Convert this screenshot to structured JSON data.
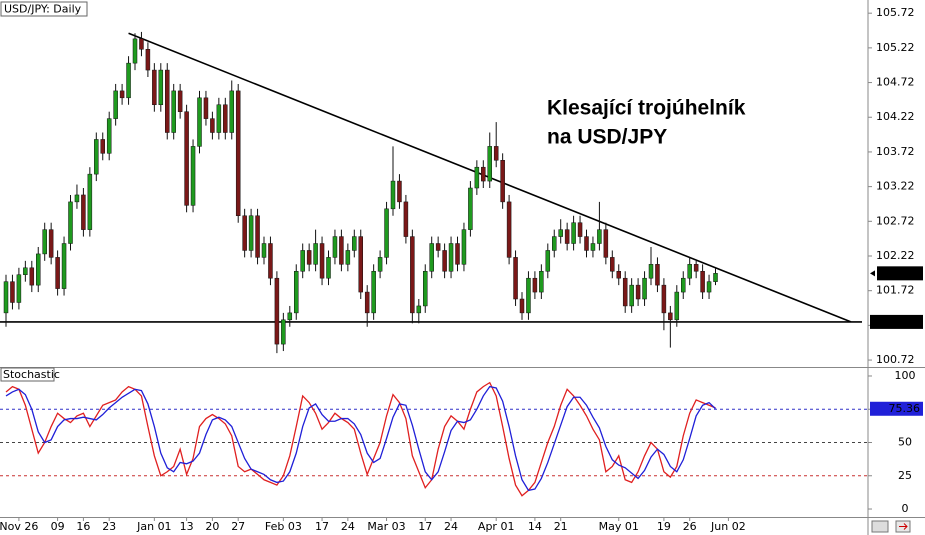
{
  "chart_data": [
    {
      "type": "candlestick",
      "title": "USD/JPY: Daily",
      "annotation": [
        "Klesající trojúhelník",
        "na USD/JPY"
      ],
      "ylim": [
        100.62,
        105.91
      ],
      "yticks": [
        100.72,
        101.22,
        101.72,
        102.22,
        102.72,
        103.22,
        103.72,
        104.22,
        104.72,
        105.22,
        105.72
      ],
      "up_color": "#1f9a1f",
      "down_color": "#7a1818",
      "last_price": 101.97,
      "support": 101.27,
      "trendline": {
        "x": [
          19,
          131
        ],
        "y": [
          105.43,
          101.27
        ]
      },
      "ohlc": [
        [
          101.4,
          101.95,
          101.2,
          101.85
        ],
        [
          101.85,
          101.95,
          101.45,
          101.55
        ],
        [
          101.55,
          102.05,
          101.45,
          101.95
        ],
        [
          101.95,
          102.15,
          101.85,
          102.05
        ],
        [
          102.05,
          102.15,
          101.7,
          101.8
        ],
        [
          101.8,
          102.35,
          101.7,
          102.25
        ],
        [
          102.25,
          102.7,
          102.15,
          102.6
        ],
        [
          102.6,
          102.7,
          102.1,
          102.2
        ],
        [
          102.2,
          102.3,
          101.65,
          101.75
        ],
        [
          101.75,
          102.5,
          101.65,
          102.4
        ],
        [
          102.4,
          103.1,
          102.3,
          103.0
        ],
        [
          103.0,
          103.25,
          102.9,
          103.1
        ],
        [
          103.1,
          103.2,
          102.5,
          102.6
        ],
        [
          102.6,
          103.5,
          102.5,
          103.4
        ],
        [
          103.4,
          104.0,
          103.3,
          103.9
        ],
        [
          103.9,
          104.0,
          103.6,
          103.7
        ],
        [
          103.7,
          104.3,
          103.6,
          104.2
        ],
        [
          104.2,
          104.7,
          104.1,
          104.6
        ],
        [
          104.6,
          104.7,
          104.4,
          104.5
        ],
        [
          104.5,
          105.1,
          104.4,
          105.0
        ],
        [
          105.0,
          105.43,
          104.9,
          105.35
        ],
        [
          105.35,
          105.45,
          105.1,
          105.2
        ],
        [
          105.2,
          105.3,
          104.8,
          104.9
        ],
        [
          104.9,
          105.0,
          104.3,
          104.4
        ],
        [
          104.4,
          105.0,
          104.3,
          104.9
        ],
        [
          104.9,
          105.0,
          103.9,
          104.0
        ],
        [
          104.0,
          104.7,
          103.9,
          104.6
        ],
        [
          104.6,
          104.7,
          104.2,
          104.3
        ],
        [
          104.3,
          104.4,
          102.85,
          102.95
        ],
        [
          102.95,
          103.9,
          102.85,
          103.8
        ],
        [
          103.8,
          104.6,
          103.7,
          104.5
        ],
        [
          104.5,
          104.6,
          104.1,
          104.2
        ],
        [
          104.2,
          104.3,
          103.9,
          104.0
        ],
        [
          104.0,
          104.5,
          103.9,
          104.4
        ],
        [
          104.4,
          104.5,
          103.9,
          104.0
        ],
        [
          104.0,
          104.75,
          103.9,
          104.6
        ],
        [
          104.6,
          104.7,
          102.7,
          102.8
        ],
        [
          102.8,
          102.9,
          102.2,
          102.3
        ],
        [
          102.3,
          102.9,
          102.2,
          102.8
        ],
        [
          102.8,
          102.9,
          102.1,
          102.2
        ],
        [
          102.2,
          102.5,
          102.1,
          102.4
        ],
        [
          102.4,
          102.5,
          101.8,
          101.9
        ],
        [
          101.9,
          102.0,
          100.82,
          100.95
        ],
        [
          100.95,
          101.4,
          100.85,
          101.3
        ],
        [
          101.3,
          101.5,
          101.2,
          101.4
        ],
        [
          101.4,
          102.1,
          101.3,
          102.0
        ],
        [
          102.0,
          102.4,
          101.9,
          102.3
        ],
        [
          102.3,
          102.4,
          102.0,
          102.1
        ],
        [
          102.1,
          102.6,
          102.0,
          102.4
        ],
        [
          102.4,
          102.5,
          101.8,
          101.9
        ],
        [
          101.9,
          102.3,
          101.8,
          102.2
        ],
        [
          102.2,
          102.6,
          102.1,
          102.5
        ],
        [
          102.5,
          102.6,
          102.0,
          102.1
        ],
        [
          102.1,
          102.4,
          102.0,
          102.3
        ],
        [
          102.3,
          102.6,
          102.2,
          102.5
        ],
        [
          102.5,
          102.6,
          101.6,
          101.7
        ],
        [
          101.7,
          101.8,
          101.2,
          101.4
        ],
        [
          101.4,
          102.1,
          101.3,
          102.0
        ],
        [
          102.0,
          102.3,
          101.9,
          102.2
        ],
        [
          102.2,
          103.0,
          102.1,
          102.9
        ],
        [
          102.9,
          103.8,
          102.8,
          103.3
        ],
        [
          103.3,
          103.4,
          102.9,
          103.0
        ],
        [
          103.0,
          103.1,
          102.4,
          102.5
        ],
        [
          102.5,
          102.6,
          101.25,
          101.4
        ],
        [
          101.4,
          101.6,
          101.25,
          101.5
        ],
        [
          101.5,
          102.1,
          101.4,
          102.0
        ],
        [
          102.0,
          102.5,
          101.9,
          102.4
        ],
        [
          102.4,
          102.5,
          102.2,
          102.3
        ],
        [
          102.3,
          102.4,
          101.9,
          102.0
        ],
        [
          102.0,
          102.5,
          101.9,
          102.4
        ],
        [
          102.4,
          102.5,
          102.0,
          102.1
        ],
        [
          102.1,
          102.7,
          102.0,
          102.6
        ],
        [
          102.6,
          103.3,
          102.5,
          103.2
        ],
        [
          103.2,
          103.6,
          103.1,
          103.5
        ],
        [
          103.5,
          103.6,
          103.2,
          103.3
        ],
        [
          103.3,
          104.0,
          103.2,
          103.8
        ],
        [
          103.8,
          104.15,
          103.5,
          103.6
        ],
        [
          103.6,
          103.7,
          102.9,
          103.0
        ],
        [
          103.0,
          103.1,
          102.1,
          102.2
        ],
        [
          102.2,
          102.3,
          101.5,
          101.6
        ],
        [
          101.6,
          101.7,
          101.3,
          101.4
        ],
        [
          101.4,
          102.0,
          101.3,
          101.9
        ],
        [
          101.9,
          102.0,
          101.6,
          101.7
        ],
        [
          101.7,
          102.1,
          101.6,
          102.0
        ],
        [
          102.0,
          102.4,
          101.9,
          102.3
        ],
        [
          102.3,
          102.6,
          102.2,
          102.5
        ],
        [
          102.5,
          102.75,
          102.4,
          102.6
        ],
        [
          102.6,
          102.7,
          102.3,
          102.4
        ],
        [
          102.4,
          102.8,
          102.3,
          102.7
        ],
        [
          102.7,
          102.8,
          102.4,
          102.5
        ],
        [
          102.5,
          102.6,
          102.2,
          102.3
        ],
        [
          102.3,
          102.5,
          102.2,
          102.4
        ],
        [
          102.4,
          103.0,
          102.3,
          102.6
        ],
        [
          102.6,
          102.7,
          102.1,
          102.2
        ],
        [
          102.2,
          102.3,
          101.9,
          102.0
        ],
        [
          102.0,
          102.1,
          101.8,
          101.9
        ],
        [
          101.9,
          102.0,
          101.4,
          101.5
        ],
        [
          101.5,
          101.9,
          101.4,
          101.8
        ],
        [
          101.8,
          101.9,
          101.5,
          101.6
        ],
        [
          101.6,
          102.0,
          101.5,
          101.9
        ],
        [
          101.9,
          102.35,
          101.8,
          102.1
        ],
        [
          102.1,
          102.2,
          101.7,
          101.8
        ],
        [
          101.8,
          101.9,
          101.15,
          101.4
        ],
        [
          101.4,
          101.5,
          100.9,
          101.3
        ],
        [
          101.3,
          101.8,
          101.2,
          101.7
        ],
        [
          101.7,
          102.0,
          101.6,
          101.9
        ],
        [
          101.9,
          102.2,
          101.8,
          102.1
        ],
        [
          102.1,
          102.15,
          101.9,
          102.0
        ],
        [
          102.0,
          102.1,
          101.6,
          101.7
        ],
        [
          101.7,
          101.95,
          101.6,
          101.85
        ],
        [
          101.85,
          102.05,
          101.8,
          101.97
        ]
      ]
    },
    {
      "type": "line",
      "title": "Stochastic",
      "ylim": [
        -6,
        106
      ],
      "yticks": [
        0,
        25,
        50,
        75,
        100
      ],
      "level_lines": [
        75,
        50,
        25
      ],
      "level_colors": [
        "#3030c8",
        "#444444",
        "#c83030"
      ],
      "xticks": [
        {
          "value": 2,
          "label": "Nov 26"
        },
        {
          "value": 8,
          "label": "09"
        },
        {
          "value": 12,
          "label": "16"
        },
        {
          "value": 16,
          "label": "23"
        },
        {
          "value": 23,
          "label": "Jan 01"
        },
        {
          "value": 28,
          "label": "13"
        },
        {
          "value": 32,
          "label": "20"
        },
        {
          "value": 36,
          "label": "27"
        },
        {
          "value": 43,
          "label": "Feb 03"
        },
        {
          "value": 49,
          "label": "17"
        },
        {
          "value": 53,
          "label": "24"
        },
        {
          "value": 59,
          "label": "Mar 03"
        },
        {
          "value": 65,
          "label": "17"
        },
        {
          "value": 69,
          "label": "24"
        },
        {
          "value": 76,
          "label": "Apr 01"
        },
        {
          "value": 82,
          "label": "14"
        },
        {
          "value": 86,
          "label": "21"
        },
        {
          "value": 95,
          "label": "May 01"
        },
        {
          "value": 102,
          "label": "19"
        },
        {
          "value": 106,
          "label": "26"
        },
        {
          "value": 112,
          "label": "Jun 02"
        }
      ],
      "series": [
        {
          "color": "#e02020",
          "values": [
            88,
            92,
            90,
            78,
            60,
            42,
            50,
            62,
            72,
            68,
            65,
            70,
            72,
            62,
            70,
            78,
            80,
            82,
            88,
            92,
            90,
            85,
            62,
            40,
            25,
            28,
            32,
            45,
            26,
            38,
            62,
            68,
            71,
            68,
            64,
            55,
            32,
            28,
            30,
            26,
            22,
            20,
            18,
            25,
            40,
            62,
            85,
            80,
            72,
            60,
            65,
            72,
            68,
            65,
            60,
            42,
            26,
            38,
            50,
            70,
            86,
            80,
            68,
            40,
            28,
            16,
            22,
            45,
            62,
            70,
            66,
            60,
            75,
            88,
            92,
            95,
            85,
            62,
            38,
            18,
            10,
            14,
            20,
            35,
            50,
            62,
            78,
            90,
            85,
            78,
            70,
            60,
            52,
            28,
            32,
            40,
            22,
            20,
            28,
            40,
            50,
            45,
            28,
            24,
            32,
            55,
            72,
            82,
            80,
            78,
            76
          ]
        },
        {
          "color": "#2020d8",
          "values": [
            85,
            88,
            90,
            86,
            75,
            58,
            50,
            52,
            62,
            67,
            68,
            68,
            69,
            68,
            67,
            71,
            76,
            80,
            84,
            87,
            90,
            89,
            79,
            62,
            42,
            31,
            28,
            35,
            34,
            36,
            42,
            56,
            67,
            69,
            67,
            62,
            50,
            38,
            30,
            28,
            26,
            22,
            20,
            21,
            28,
            42,
            62,
            76,
            79,
            71,
            66,
            66,
            68,
            68,
            64,
            56,
            42,
            35,
            38,
            53,
            69,
            79,
            78,
            63,
            45,
            28,
            22,
            28,
            43,
            59,
            66,
            65,
            67,
            75,
            85,
            92,
            91,
            81,
            62,
            40,
            22,
            14,
            15,
            23,
            35,
            49,
            63,
            77,
            84,
            84,
            78,
            69,
            61,
            47,
            37,
            33,
            31,
            27,
            23,
            29,
            39,
            45,
            41,
            32,
            28,
            37,
            53,
            70,
            78,
            80,
            75.36
          ]
        }
      ]
    }
  ]
}
